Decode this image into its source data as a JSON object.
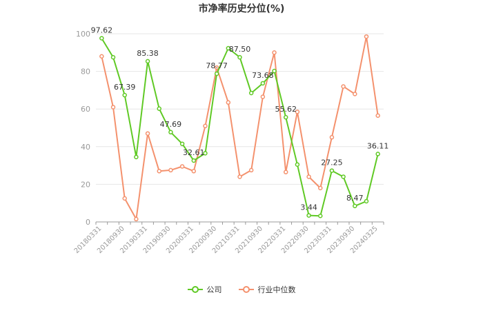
{
  "chart_data": {
    "type": "line",
    "title": "市净率历史分位(%)",
    "ylim": [
      0,
      100
    ],
    "yticks": [
      0,
      20,
      40,
      60,
      80,
      100
    ],
    "grid": true,
    "legend_position": "bottom",
    "x": [
      "20180331",
      "20180630",
      "20180930",
      "20181231",
      "20190331",
      "20190630",
      "20190930",
      "20191231",
      "20200331",
      "20200630",
      "20200930",
      "20201231",
      "20210331",
      "20210630",
      "20210930",
      "20211231",
      "20220331",
      "20220630",
      "20220930",
      "20221231",
      "20230331",
      "20230630",
      "20230930",
      "20231231",
      "20240325"
    ],
    "xtick_labels": [
      "20180331",
      "20180930",
      "20190331",
      "20190930",
      "20200331",
      "20200930",
      "20210331",
      "20210930",
      "20220331",
      "20220930",
      "20230331",
      "20230930",
      "20240325"
    ],
    "series": [
      {
        "name": "公司",
        "color": "#5fc924",
        "values": [
          97.62,
          87.5,
          67.39,
          34.5,
          85.38,
          60.2,
          47.69,
          41.5,
          32.61,
          36.5,
          78.77,
          92.3,
          87.5,
          68.5,
          73.68,
          80.2,
          55.62,
          30.5,
          3.44,
          3.2,
          27.25,
          24.0,
          8.47,
          11.0,
          36.11
        ],
        "labels": {
          "0": "97.62",
          "2": "67.39",
          "4": "85.38",
          "6": "47.69",
          "8": "32.61",
          "10": "78.77",
          "12": "87.50",
          "14": "73.68",
          "16": "55.62",
          "18": "3.44",
          "20": "27.25",
          "22": "8.47",
          "24": "36.11"
        }
      },
      {
        "name": "行业中位数",
        "color": "#f4916d",
        "values": [
          88.0,
          61.0,
          12.5,
          1.5,
          47.0,
          27.0,
          27.5,
          29.5,
          27.0,
          51.0,
          82.0,
          63.5,
          24.0,
          27.5,
          66.5,
          90.0,
          26.5,
          58.5,
          24.0,
          18.0,
          45.0,
          72.0,
          68.0,
          98.5,
          56.5
        ]
      }
    ]
  },
  "legend": {
    "company_label": "公司",
    "industry_label": "行业中位数"
  }
}
